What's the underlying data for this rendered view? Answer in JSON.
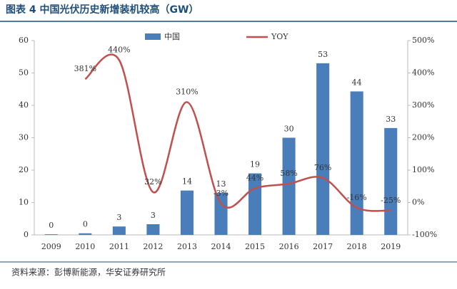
{
  "chart_data": {
    "type": "bar-line",
    "title": "图表 4 中国光伏历史新增装机较高（GW）",
    "source": "资料来源：彭博新能源，华安证券研究所",
    "categories": [
      "2009",
      "2010",
      "2011",
      "2012",
      "2013",
      "2014",
      "2015",
      "2016",
      "2017",
      "2018",
      "2019"
    ],
    "series": [
      {
        "name": "中国",
        "type": "bar",
        "color": "#4a7ebb",
        "values": [
          0.2,
          0.5,
          2.6,
          3.3,
          13.7,
          13,
          19,
          30,
          53,
          44.3,
          33
        ],
        "value_labels": [
          "0",
          "0",
          "3",
          "3",
          "14",
          "13",
          "19",
          "30",
          "53",
          "44",
          "33"
        ]
      },
      {
        "name": "YOY",
        "type": "line",
        "axis": "y2",
        "color": "#c0504d",
        "values": [
          null,
          381,
          440,
          32,
          310,
          -3,
          44,
          58,
          76,
          -16,
          -25
        ],
        "value_labels": [
          null,
          "381%",
          "440%",
          "32%",
          "310%",
          "-3%",
          "44%",
          "58%",
          "76%",
          "-16%",
          "-25%"
        ]
      }
    ],
    "ylim": [
      0,
      60
    ],
    "yticks": [
      0,
      10,
      20,
      30,
      40,
      50,
      60
    ],
    "y2lim": [
      -100,
      500
    ],
    "y2ticks": [
      {
        "value": -100,
        "label": "-100%"
      },
      {
        "value": 0,
        "label": "0%"
      },
      {
        "value": 100,
        "label": "100%"
      },
      {
        "value": 200,
        "label": "200%"
      },
      {
        "value": 300,
        "label": "300%"
      },
      {
        "value": 400,
        "label": "400%"
      },
      {
        "value": 500,
        "label": "500%"
      }
    ],
    "legend": "top"
  }
}
